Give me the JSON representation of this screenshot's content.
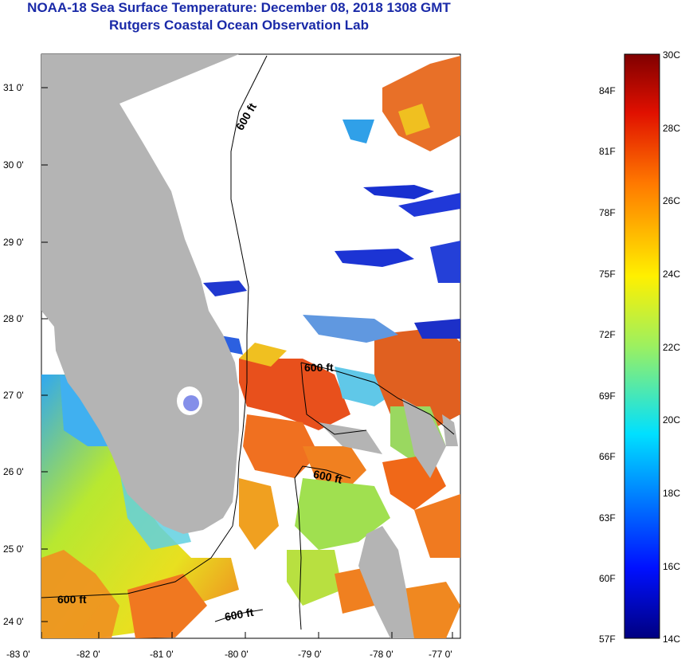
{
  "title": "NOAA-18 Sea Surface Temperature:  December 08, 2018 1308 GMT",
  "subtitle": "Rutgers Coastal Ocean Observation Lab",
  "map": {
    "x_ticks": [
      "-83 0'",
      "-82 0'",
      "-81 0'",
      "-80 0'",
      "-79 0'",
      "-78 0'",
      "-77 0'"
    ],
    "y_ticks": [
      "31 0'",
      "30 0'",
      "29 0'",
      "28 0'",
      "27 0'",
      "26 0'",
      "25 0'",
      "24 0'"
    ],
    "contour_labels": [
      "600 ft",
      "600 ft",
      "600 ft",
      "600 ft",
      "600 ft"
    ]
  },
  "colorbar": {
    "celsius": [
      "30C",
      "28C",
      "26C",
      "24C",
      "22C",
      "20C",
      "18C",
      "16C",
      "14C"
    ],
    "fahrenheit": [
      "84F",
      "81F",
      "78F",
      "75F",
      "72F",
      "69F",
      "66F",
      "63F",
      "60F",
      "57F"
    ]
  },
  "colors": {
    "land": "#b4b4b4",
    "title": "#1a2aa8",
    "warm": "#e8641e",
    "mid": "#a8e040",
    "cool": "#2838d0"
  }
}
